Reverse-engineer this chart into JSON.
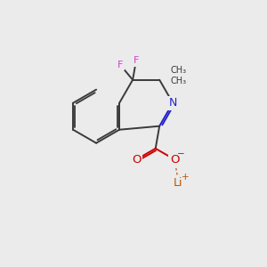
{
  "bg_color": "#ebebeb",
  "bond_color": "#3a3a3a",
  "bond_width": 1.4,
  "F_color": "#cc44cc",
  "N_color": "#2222cc",
  "O_color": "#cc0000",
  "Li_color": "#bb5500",
  "C8a": [
    4.15,
    6.55
  ],
  "C4a": [
    4.15,
    5.25
  ],
  "bl": 1.3
}
